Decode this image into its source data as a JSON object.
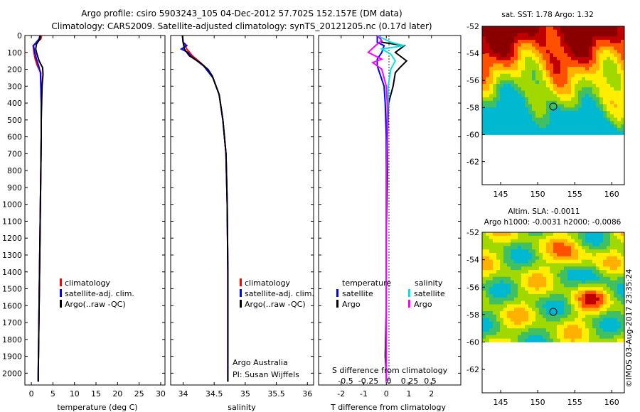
{
  "header": {
    "line1": "Argo profile: csiro 5903243_105 04-Dec-2012 57.702S 152.157E (DM data)",
    "line2": "Climatology: CARS2009. Satellite-adjusted climatology: synTS_20121205.nc (0.17d later)"
  },
  "colors": {
    "climatology": "#ff0000",
    "satellite": "#0000ff",
    "argo": "#000000",
    "salinity_satellite": "#00e5e5",
    "salinity_argo": "#ff00ff"
  },
  "chart_data": [
    {
      "type": "line",
      "xlabel": "temperature (deg C)",
      "ylabel": "",
      "xlim": [
        -1.5,
        31
      ],
      "ylim": [
        2070,
        0
      ],
      "xticks": [
        0,
        5,
        10,
        15,
        20,
        25,
        30
      ],
      "yticks": [
        0,
        100,
        200,
        300,
        400,
        500,
        600,
        700,
        800,
        900,
        1000,
        1100,
        1200,
        1300,
        1400,
        1500,
        1600,
        1700,
        1800,
        1900,
        2000
      ],
      "legend": [
        "climatology",
        "satellite-adj. clim.",
        "Argo(..raw -QC)"
      ],
      "series": [
        {
          "name": "climatology",
          "depth": [
            0,
            20,
            60,
            100,
            140,
            180,
            220,
            300,
            400,
            500,
            600,
            800,
            1000,
            1200,
            1400,
            1600,
            1800,
            2000,
            2050
          ],
          "values": [
            2.4,
            2.2,
            0.4,
            0.6,
            0.9,
            1.4,
            2.2,
            2.2,
            2.3,
            2.3,
            2.3,
            2.2,
            2.1,
            2.0,
            1.9,
            1.8,
            1.7,
            1.6,
            1.6
          ]
        },
        {
          "name": "satellite-adj. clim.",
          "depth": [
            0,
            20,
            60,
            100,
            140,
            180,
            220,
            300,
            400,
            500,
            600,
            800,
            1000,
            1200,
            1400,
            1600,
            1800,
            2000,
            2050
          ],
          "values": [
            2.0,
            1.8,
            0.5,
            0.8,
            1.2,
            1.7,
            2.1,
            2.2,
            2.3,
            2.3,
            2.3,
            2.2,
            2.1,
            2.0,
            1.9,
            1.8,
            1.7,
            1.6,
            1.6
          ]
        },
        {
          "name": "Argo(..raw -QC)",
          "depth": [
            0,
            20,
            50,
            80,
            110,
            150,
            190,
            230,
            260,
            300,
            400,
            500,
            600,
            800,
            1000,
            1200,
            1400,
            1600,
            1800,
            2000,
            2050
          ],
          "values": [
            2.1,
            2.0,
            1.2,
            1.0,
            1.3,
            1.8,
            2.6,
            2.7,
            2.6,
            2.5,
            2.4,
            2.3,
            2.3,
            2.2,
            2.1,
            2.0,
            1.9,
            1.8,
            1.7,
            1.6,
            1.6
          ]
        }
      ]
    },
    {
      "type": "line",
      "xlabel": "salinity",
      "ylabel": "",
      "xlim": [
        33.8,
        36.1
      ],
      "ylim": [
        2070,
        0
      ],
      "xticks": [
        34,
        34.5,
        35,
        35.5,
        36
      ],
      "legend": [
        "climatology",
        "satellite-adj. clim.",
        "Argo(..raw -QC)"
      ],
      "annotations": [
        "Argo Australia",
        "PI: Susan Wijffels"
      ],
      "series": [
        {
          "name": "climatology",
          "depth": [
            0,
            40,
            80,
            120,
            180,
            250,
            350,
            500,
            700,
            1000,
            1400,
            2000,
            2050
          ],
          "values": [
            33.99,
            34.0,
            34.06,
            34.15,
            34.34,
            34.48,
            34.58,
            34.64,
            34.69,
            34.71,
            34.72,
            34.72,
            34.72
          ]
        },
        {
          "name": "satellite-adj. clim.",
          "depth": [
            0,
            40,
            60,
            80,
            100,
            120,
            180,
            250,
            350,
            500,
            700,
            1000,
            1400,
            2000,
            2050
          ],
          "values": [
            33.99,
            34.0,
            34.06,
            33.97,
            34.08,
            34.12,
            34.33,
            34.48,
            34.58,
            34.64,
            34.69,
            34.71,
            34.72,
            34.72,
            34.72
          ]
        },
        {
          "name": "Argo(..raw -QC)",
          "depth": [
            0,
            40,
            80,
            120,
            160,
            200,
            240,
            300,
            350,
            500,
            700,
            1000,
            1400,
            2000,
            2050
          ],
          "values": [
            33.99,
            34.0,
            34.02,
            34.1,
            34.27,
            34.4,
            34.47,
            34.53,
            34.58,
            34.64,
            34.69,
            34.71,
            34.72,
            34.72,
            34.72
          ]
        }
      ]
    },
    {
      "type": "line",
      "xlabel": "T difference from climatology",
      "top_label": "S difference from climatology",
      "ylabel": "",
      "xlim": [
        -3,
        3.3
      ],
      "ylim": [
        2070,
        0
      ],
      "xticks": [
        -2,
        -1,
        0,
        1,
        2
      ],
      "s_ticks": [
        "-0.5",
        "-0.25",
        "0",
        "0.25",
        "0.5"
      ],
      "legend_headers": [
        "temperature",
        "salinity"
      ],
      "legend": [
        "satellite",
        "Argo",
        "satellite",
        "Argo"
      ],
      "series": [
        {
          "name": "temperature satellite",
          "depth": [
            0,
            40,
            60,
            100,
            140,
            180,
            220,
            300,
            400,
            600,
            800,
            1200,
            2000,
            2050
          ],
          "values": [
            -0.4,
            -0.4,
            -0.1,
            -0.2,
            -0.4,
            -0.4,
            -0.3,
            -0.1,
            -0.05,
            0.0,
            0.0,
            0.0,
            0.0,
            0.0
          ]
        },
        {
          "name": "temperature Argo",
          "depth": [
            0,
            40,
            60,
            100,
            150,
            190,
            220,
            300,
            400,
            600,
            800,
            1200,
            1600,
            1900,
            2000,
            2050
          ],
          "values": [
            -0.3,
            -0.2,
            0.8,
            0.4,
            0.9,
            0.6,
            0.4,
            0.3,
            0.1,
            0.05,
            0.05,
            0.0,
            0.0,
            -0.05,
            0.0,
            0.0
          ]
        },
        {
          "name": "salinity satellite",
          "depth": [
            0,
            40,
            60,
            80,
            110,
            150,
            200,
            300,
            400,
            600,
            900,
            1300,
            1700,
            2000,
            2050
          ],
          "values": [
            -0.1,
            0.05,
            0.2,
            -0.05,
            0.05,
            0.1,
            0.05,
            0.02,
            0.02,
            0.01,
            0.0,
            0.0,
            0.0,
            0.0,
            0.0
          ]
        },
        {
          "name": "salinity Argo",
          "depth": [
            0,
            30,
            60,
            100,
            140,
            160,
            200,
            300,
            400,
            600,
            900,
            1300,
            1700,
            2000,
            2050
          ],
          "values": [
            -0.1,
            -0.05,
            -0.12,
            -0.2,
            -0.05,
            -0.15,
            -0.05,
            0.0,
            0.01,
            0.01,
            0.0,
            0.0,
            0.0,
            0.0,
            0.0
          ]
        }
      ]
    },
    {
      "type": "heatmap",
      "title": "sat. SST: 1.78 Argo: 1.32",
      "xlim": [
        142.5,
        161.7
      ],
      "ylim": [
        -63.7,
        -52
      ],
      "xticks": [
        145,
        150,
        155,
        160
      ],
      "yticks": [
        -52,
        -54,
        -56,
        -58,
        -60,
        -62
      ],
      "marker": {
        "lon": 152.157,
        "lat": -57.702
      },
      "data_extent_lat": [
        -60,
        -52
      ],
      "colormap": [
        "#00b8d0",
        "#40c060",
        "#a0d800",
        "#ffee00",
        "#ffb000",
        "#ff5000",
        "#c00000",
        "#8a0000"
      ]
    },
    {
      "type": "heatmap",
      "title_line1": "Altim. SLA: -0.0011",
      "title_line2": "Argo h1000: -0.0031 h2000: -0.0086",
      "xlim": [
        142.5,
        161.7
      ],
      "ylim": [
        -63.7,
        -52
      ],
      "xticks": [
        145,
        150,
        155,
        160
      ],
      "yticks": [
        -52,
        -54,
        -56,
        -58,
        -60,
        -62
      ],
      "marker": {
        "lon": 152.157,
        "lat": -57.702
      },
      "data_extent_lat": [
        -60,
        -52
      ],
      "colormap": [
        "#00b8d0",
        "#40c060",
        "#a0d800",
        "#ffee00",
        "#ffb000",
        "#ff5000",
        "#c00000"
      ]
    }
  ],
  "watermark": "©IMOS 03-Aug-2017 23:35:24"
}
